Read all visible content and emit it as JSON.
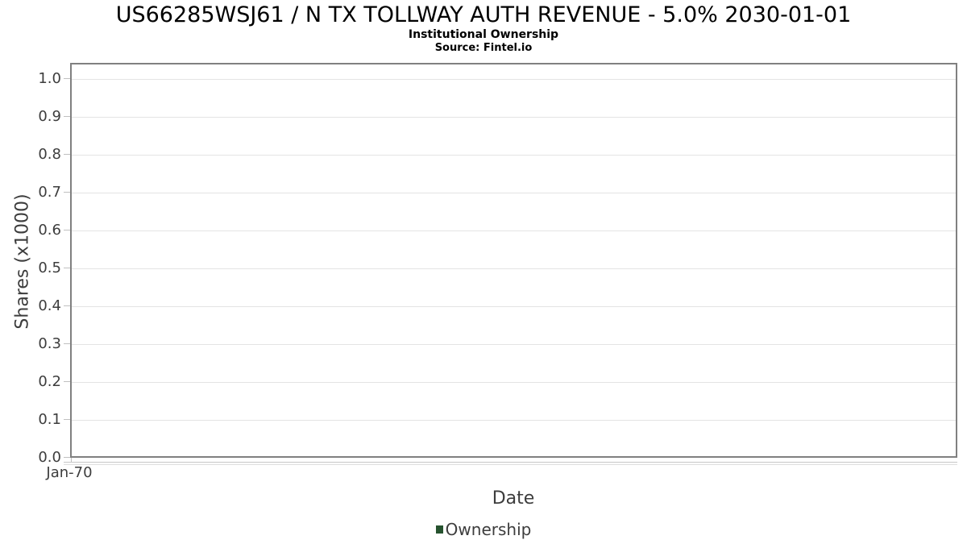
{
  "header": {
    "title": "US66285WSJ61 / N TX TOLLWAY AUTH REVENUE - 5.0% 2030-01-01",
    "subtitle": "Institutional Ownership",
    "source": "Source: Fintel.io"
  },
  "chart_data": {
    "type": "line",
    "title": "US66285WSJ61 / N TX TOLLWAY AUTH REVENUE - 5.0% 2030-01-01",
    "subtitle": "Institutional Ownership",
    "source_note": "Source: Fintel.io",
    "xlabel": "Date",
    "ylabel": "Shares (x1000)",
    "ylim": [
      0.0,
      1.0
    ],
    "yticks": [
      0.0,
      0.1,
      0.2,
      0.3,
      0.4,
      0.5,
      0.6,
      0.7,
      0.8,
      0.9,
      1.0
    ],
    "ytick_labels": [
      "0.0",
      "0.1",
      "0.2",
      "0.3",
      "0.4",
      "0.5",
      "0.6",
      "0.7",
      "0.8",
      "0.9",
      "1.0"
    ],
    "xtick_labels": [
      "Jan-70"
    ],
    "grid": "horizontal-only",
    "legend_position": "bottom-center",
    "series": [
      {
        "name": "Ownership",
        "color": "#26532f",
        "x": [],
        "values": []
      }
    ]
  },
  "legend": {
    "label": "Ownership",
    "marker_color": "#26532f"
  },
  "colors": {
    "background": "#ffffff",
    "plot_border": "#808080",
    "gridline": "#e4e4e4",
    "tick": "#c0c0c0",
    "axis_text": "#3d3d3d",
    "title_text": "#000000"
  }
}
